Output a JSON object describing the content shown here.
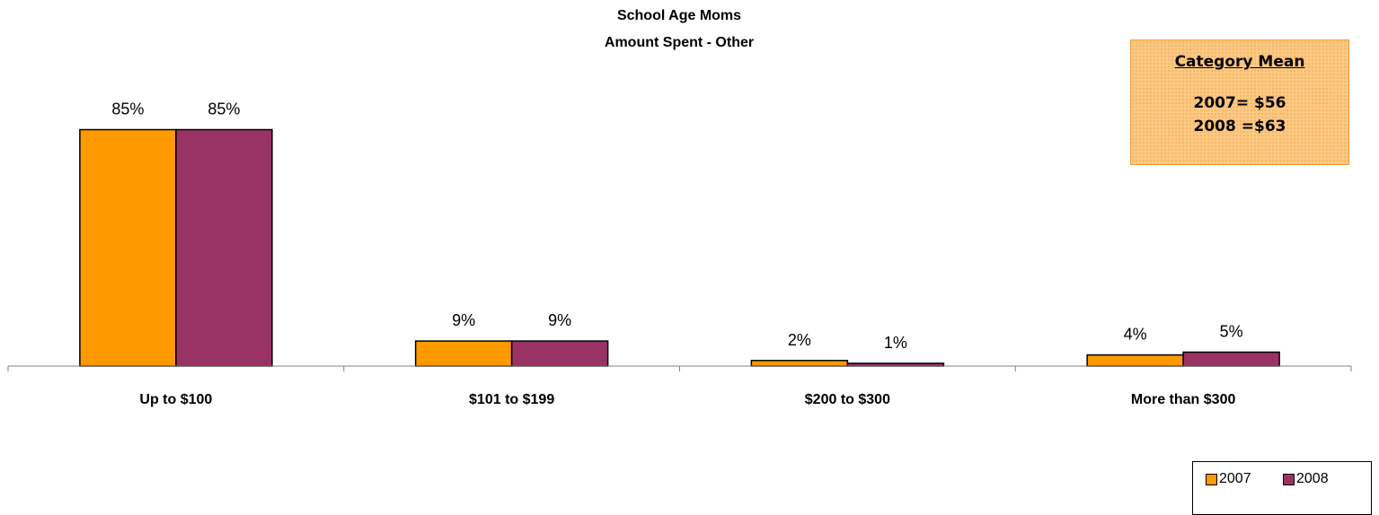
{
  "chart_data": {
    "type": "bar",
    "title": "School Age Moms",
    "subtitle": "Amount Spent - Other",
    "categories": [
      "Up to $100",
      "$101 to $199",
      "$200 to $300",
      "More than $300"
    ],
    "series": [
      {
        "name": "2007",
        "values": [
          85,
          9,
          2,
          4
        ],
        "labels": [
          "85%",
          "9%",
          "2%",
          "4%"
        ],
        "color": "#ff9900"
      },
      {
        "name": "2008",
        "values": [
          85,
          9,
          1,
          5
        ],
        "labels": [
          "85%",
          "9%",
          "1%",
          "5%"
        ],
        "color": "#993366"
      }
    ],
    "ylim": [
      0,
      100
    ],
    "grid": false,
    "legend": "bottom-right"
  },
  "annotation": {
    "title": "Category Mean",
    "line1": "2007= $56",
    "line2": "2008 =$63"
  }
}
